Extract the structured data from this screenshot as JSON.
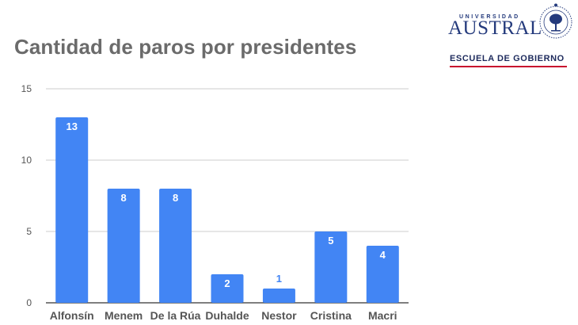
{
  "chart_data": {
    "type": "bar",
    "title": "Cantidad de paros por presidentes",
    "categories": [
      "Alfonsín",
      "Menem",
      "De la Rúa",
      "Duhalde",
      "Nestor",
      "Cristina",
      "Macri"
    ],
    "values": [
      13,
      8,
      8,
      2,
      1,
      5,
      4
    ],
    "ylim": [
      0,
      15
    ],
    "yticks": [
      0,
      5,
      10,
      15
    ],
    "xlabel": "",
    "ylabel": "",
    "grid": true,
    "bar_color": "#4285f4",
    "data_labels": true
  },
  "logo": {
    "small_text": "UNIVERSIDAD",
    "name": "AUSTRAL",
    "subtitle": "ESCUELA DE GOBIERNO",
    "brand_color": "#243a7c",
    "accent_color": "#c8102e"
  }
}
